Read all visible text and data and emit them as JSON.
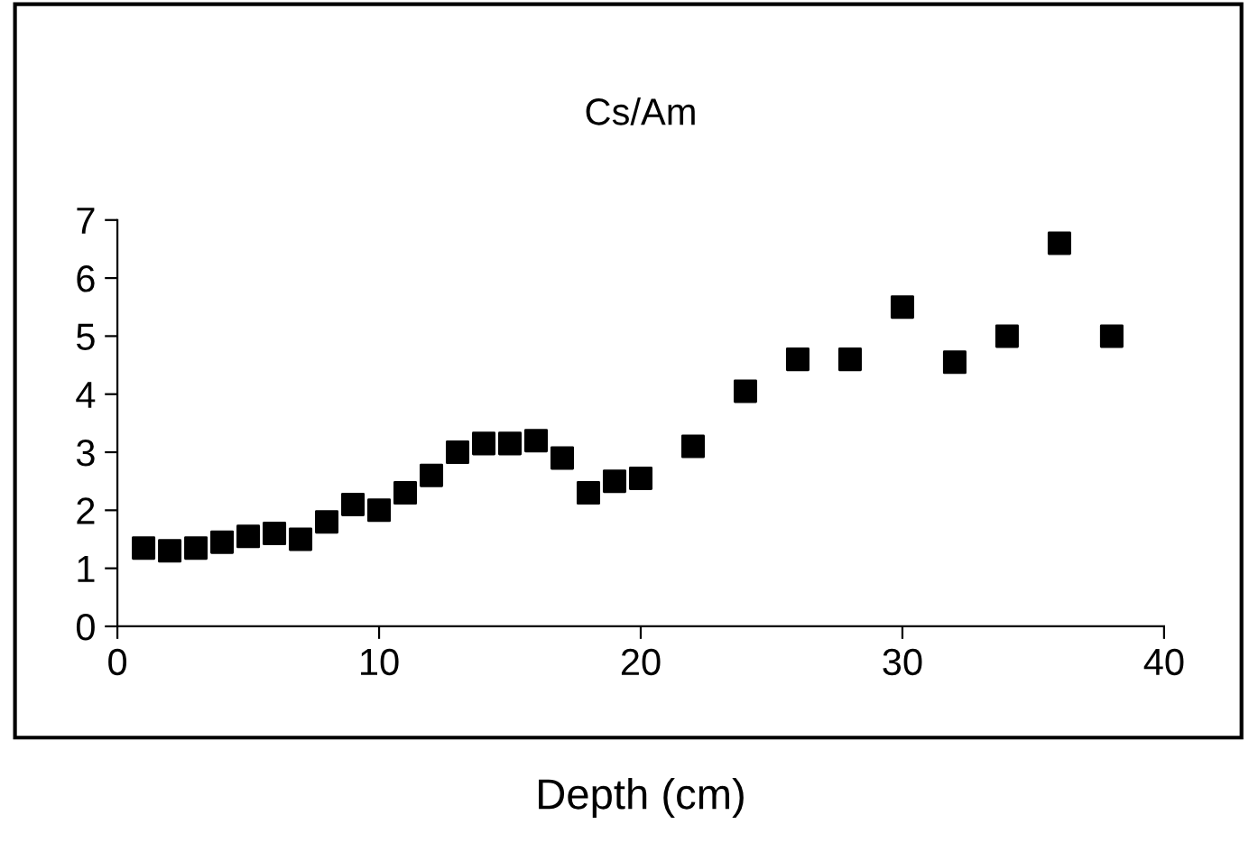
{
  "chart_data": {
    "type": "scatter",
    "title": "Cs/Am",
    "xlabel": "Depth (cm)",
    "x": [
      1,
      2,
      3,
      4,
      5,
      6,
      7,
      8,
      9,
      10,
      11,
      12,
      13,
      14,
      15,
      16,
      17,
      18,
      19,
      20,
      22,
      24,
      26,
      28,
      30,
      32,
      34,
      36,
      38
    ],
    "series": [
      {
        "color": "#000000",
        "values": [
          1.35,
          1.3,
          1.35,
          1.45,
          1.55,
          1.6,
          1.5,
          1.8,
          2.1,
          2.0,
          2.3,
          2.6,
          3.0,
          3.15,
          3.15,
          3.2,
          2.9,
          2.3,
          2.5,
          2.55,
          3.1,
          4.05,
          4.6,
          4.6,
          5.5,
          4.55,
          5.0,
          6.6,
          5.0
        ]
      }
    ],
    "marker": "square",
    "xlim": [
      0,
      40
    ],
    "xticks": [
      0,
      10,
      20,
      30,
      40
    ],
    "ylim": [
      0,
      7
    ],
    "yticks": [
      0,
      1,
      2,
      3,
      4,
      5,
      6,
      7
    ],
    "grid": false,
    "legend": false
  }
}
